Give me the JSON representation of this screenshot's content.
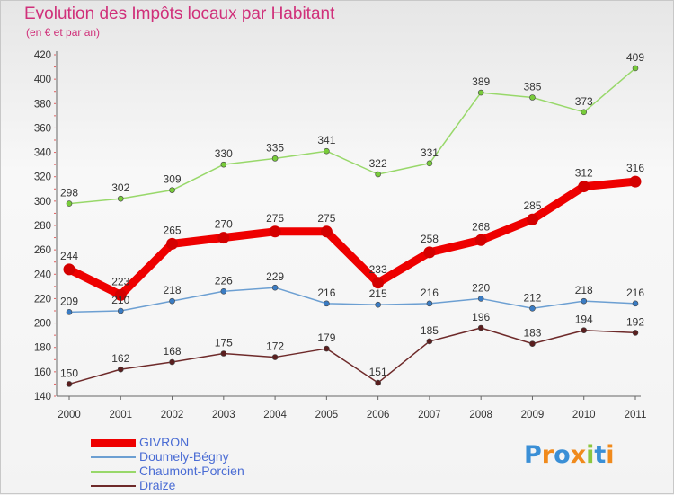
{
  "header": {
    "title": "Evolution des Impôts locaux par Habitant",
    "subtitle": "(en € et par an)"
  },
  "chart_data": {
    "type": "line",
    "categories": [
      "2000",
      "2001",
      "2002",
      "2003",
      "2004",
      "2005",
      "2006",
      "2007",
      "2008",
      "2009",
      "2010",
      "2011"
    ],
    "ylim": [
      140,
      420
    ],
    "yticks": [
      140,
      160,
      180,
      200,
      220,
      240,
      260,
      280,
      300,
      320,
      340,
      360,
      380,
      400,
      420
    ],
    "grid": false,
    "legend_position": "bottom-left",
    "series": [
      {
        "name": "GIVRON",
        "color": "#ee0000",
        "marker": "#d40000",
        "emphasis": true,
        "values": [
          244,
          223,
          265,
          270,
          275,
          275,
          233,
          258,
          268,
          285,
          312,
          316
        ]
      },
      {
        "name": "Doumely-Bégny",
        "color": "#6c9fd2",
        "marker": "#3a7cc4",
        "emphasis": false,
        "values": [
          209,
          210,
          218,
          226,
          229,
          216,
          215,
          216,
          220,
          212,
          218,
          216
        ]
      },
      {
        "name": "Chaumont-Porcien",
        "color": "#98d86a",
        "marker": "#78cc3a",
        "emphasis": false,
        "values": [
          298,
          302,
          309,
          330,
          335,
          341,
          322,
          331,
          389,
          385,
          373,
          409
        ]
      },
      {
        "name": "Draize",
        "color": "#6e2a2a",
        "marker": "#5a1e1e",
        "emphasis": false,
        "values": [
          150,
          162,
          168,
          175,
          172,
          179,
          151,
          185,
          196,
          183,
          194,
          192
        ]
      }
    ]
  },
  "logo": {
    "text": "Proxiti",
    "letters": [
      "P",
      "r",
      "o",
      "x",
      "i",
      "t",
      "i"
    ],
    "colors": [
      "#3a8fd6",
      "#f08a1c",
      "#3a8fd6",
      "#f08a1c",
      "#8cc63f",
      "#3a8fd6",
      "#f08a1c"
    ]
  }
}
